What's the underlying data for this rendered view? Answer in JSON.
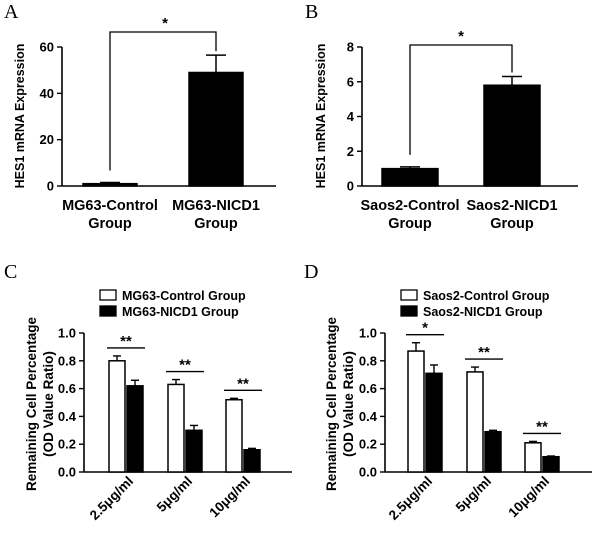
{
  "chart_data": [
    {
      "panel": "A",
      "type": "bar",
      "ylabel": "HES1 mRNA Expression",
      "ylim": [
        0,
        60
      ],
      "yticks": [
        0,
        20,
        40,
        60
      ],
      "categories": [
        [
          "MG63-Control",
          "Group"
        ],
        [
          "MG63-NICD1",
          "Group"
        ]
      ],
      "values": [
        1.0,
        49.0
      ],
      "errors": [
        0.5,
        7.5
      ],
      "fills": [
        "#000000",
        "#000000"
      ],
      "significance": "*"
    },
    {
      "panel": "B",
      "type": "bar",
      "ylabel": "HES1 mRNA Expression",
      "ylim": [
        0,
        8
      ],
      "yticks": [
        0,
        2,
        4,
        6,
        8
      ],
      "categories": [
        [
          "Saos2-Control",
          "Group"
        ],
        [
          "Saos2-NICD1",
          "Group"
        ]
      ],
      "values": [
        1.0,
        5.8
      ],
      "errors": [
        0.1,
        0.5
      ],
      "fills": [
        "#000000",
        "#000000"
      ],
      "significance": "*"
    },
    {
      "panel": "C",
      "type": "bar",
      "ylabel": [
        "Remaining Cell Percentage",
        "(OD Value Ratio)"
      ],
      "ylim": [
        0,
        1.0
      ],
      "yticks": [
        0.0,
        0.2,
        0.4,
        0.6,
        0.8,
        1.0
      ],
      "categories": [
        "2.5μg/ml",
        "5μg/ml",
        "10μg/ml"
      ],
      "series": [
        {
          "name": "MG63-Control Group",
          "fill": "#ffffff",
          "values": [
            0.8,
            0.63,
            0.52
          ],
          "errors": [
            0.035,
            0.035,
            0.01
          ]
        },
        {
          "name": "MG63-NICD1 Group",
          "fill": "#000000",
          "values": [
            0.62,
            0.3,
            0.16
          ],
          "errors": [
            0.04,
            0.035,
            0.01
          ]
        }
      ],
      "significance": [
        "**",
        "**",
        "**"
      ]
    },
    {
      "panel": "D",
      "type": "bar",
      "ylabel": [
        "Remaining Cell Percentage",
        "(OD Value Ratio)"
      ],
      "ylim": [
        0,
        1.0
      ],
      "yticks": [
        0.0,
        0.2,
        0.4,
        0.6,
        0.8,
        1.0
      ],
      "categories": [
        "2.5μg/ml",
        "5μg/ml",
        "10μg/ml"
      ],
      "series": [
        {
          "name": "Saos2-Control Group",
          "fill": "#ffffff",
          "values": [
            0.87,
            0.72,
            0.21
          ],
          "errors": [
            0.06,
            0.035,
            0.01
          ]
        },
        {
          "name": "Saos2-NICD1 Group",
          "fill": "#000000",
          "values": [
            0.71,
            0.29,
            0.11
          ],
          "errors": [
            0.06,
            0.01,
            0.005
          ]
        }
      ],
      "significance": [
        "*",
        "**",
        "**"
      ]
    }
  ]
}
